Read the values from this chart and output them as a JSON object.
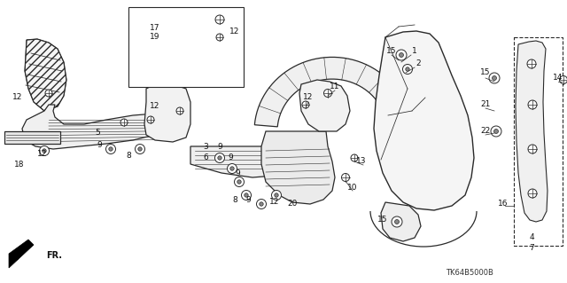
{
  "background_color": "#ffffff",
  "diagram_code": "TK64B5000B",
  "line_color": "#2a2a2a",
  "label_color": "#111111",
  "label_fontsize": 6.5,
  "code_fontsize": 6.0,
  "lw_main": 0.9,
  "lw_thin": 0.55,
  "figsize": [
    6.4,
    3.19
  ],
  "dpi": 100
}
